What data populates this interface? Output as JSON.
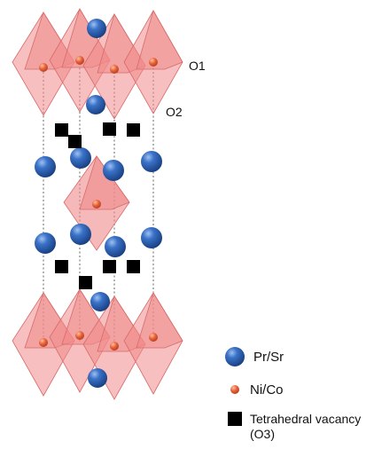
{
  "labels": {
    "o1": "O1",
    "o2": "O2"
  },
  "legend": [
    {
      "symbol": "pr-sr",
      "text": "Pr/Sr",
      "color": "#2f63b6"
    },
    {
      "symbol": "ni-co",
      "text": "Ni/Co",
      "color": "#e8623a"
    },
    {
      "symbol": "vacancy",
      "text": "Tetrahedral vacancy (O3)",
      "color": "#000000"
    }
  ],
  "colors": {
    "octahedron": "#f08a8a",
    "octahedron_edge": "#d86a6a",
    "pr_sr": "#2f63b6",
    "ni_co": "#e8623a",
    "vacancy": "#000000",
    "guide_line": "#444444"
  }
}
